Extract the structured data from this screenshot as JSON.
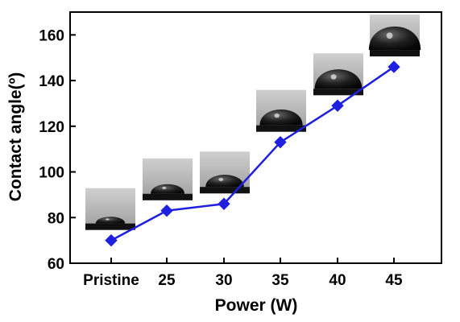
{
  "chart_data": {
    "type": "line",
    "categories": [
      "Pristine",
      "25",
      "30",
      "35",
      "40",
      "45"
    ],
    "values": [
      70,
      83,
      86,
      113,
      129,
      146
    ],
    "xlabel": "Power (W)",
    "ylabel": "Contact angle(º)",
    "ylim": [
      60,
      170
    ],
    "yticks": [
      60,
      80,
      100,
      120,
      140,
      160
    ],
    "grid": false,
    "legend": "none",
    "line_color": "#1f1fe0",
    "marker": "diamond",
    "inset_images": "droplet photo above each data point"
  }
}
